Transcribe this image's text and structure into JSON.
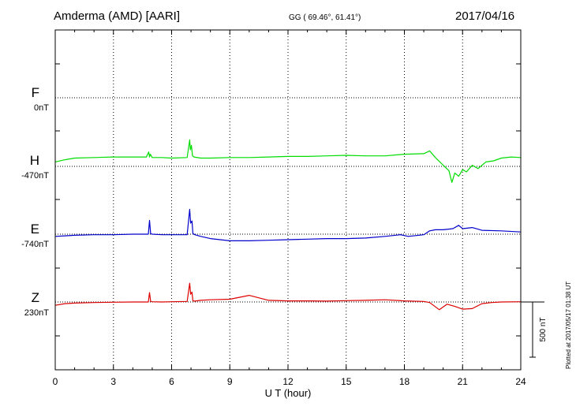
{
  "header": {
    "station": "Amderma (AMD)  [AARI]",
    "coords": "GG ( 69.46°,  61.41°)",
    "date": "2017/04/16"
  },
  "footer": "Plotted at 2017/05/17 01:38 UT",
  "components": [
    {
      "label": "F",
      "baseline": "0nT",
      "color": "#ffb000"
    },
    {
      "label": "H",
      "baseline": "-470nT",
      "color": "#00dd00"
    },
    {
      "label": "E",
      "baseline": "-740nT",
      "color": "#0000cc"
    },
    {
      "label": "Z",
      "baseline": "230nT",
      "color": "#dd0000"
    }
  ],
  "scale_bar": {
    "label": "500 nT",
    "value_nT": 500
  },
  "chart_data": {
    "type": "line",
    "title": "",
    "xlabel": "U T (hour)",
    "ylabel": "",
    "xlim": [
      0,
      24
    ],
    "xticks": [
      0,
      3,
      6,
      9,
      12,
      15,
      18,
      21,
      24
    ],
    "grid": true,
    "units": "nT",
    "series": [
      {
        "name": "F",
        "baseline_nT": 0,
        "x": [],
        "y": []
      },
      {
        "name": "H",
        "baseline_nT": -470,
        "x": [
          0,
          0.5,
          1,
          2,
          3,
          3.8,
          4.7,
          4.82,
          4.86,
          4.9,
          5.0,
          5.5,
          6.0,
          6.8,
          6.93,
          6.97,
          7.02,
          7.08,
          7.15,
          7.5,
          8,
          9,
          10,
          11,
          12,
          13,
          14,
          15,
          16,
          17,
          18,
          19,
          19.3,
          19.6,
          20,
          20.3,
          20.45,
          20.6,
          20.8,
          21,
          21.2,
          21.5,
          21.8,
          22.2,
          22.6,
          23,
          23.5,
          24
        ],
        "y": [
          -430,
          -410,
          -395,
          -390,
          -385,
          -385,
          -385,
          -340,
          -385,
          -360,
          -390,
          -390,
          -395,
          -390,
          -230,
          -320,
          -280,
          -375,
          -385,
          -395,
          -395,
          -390,
          -390,
          -385,
          -380,
          -380,
          -375,
          -370,
          -375,
          -375,
          -360,
          -355,
          -330,
          -390,
          -460,
          -510,
          -615,
          -530,
          -560,
          -500,
          -520,
          -460,
          -490,
          -430,
          -420,
          -395,
          -385,
          -390
        ]
      },
      {
        "name": "E",
        "baseline_nT": -740,
        "x": [
          0,
          0.5,
          1,
          2,
          3,
          4,
          4.8,
          4.86,
          4.92,
          5.0,
          5.5,
          6.0,
          6.8,
          6.93,
          6.98,
          7.05,
          7.1,
          7.2,
          7.5,
          8,
          9,
          10,
          11,
          12,
          13,
          14,
          15,
          16,
          17,
          17.8,
          18.2,
          19,
          19.3,
          19.6,
          20,
          20.5,
          20.8,
          21,
          21.5,
          22,
          23,
          24
        ],
        "y": [
          -760,
          -755,
          -750,
          -745,
          -745,
          -740,
          -740,
          -615,
          -735,
          -740,
          -745,
          -745,
          -745,
          -515,
          -640,
          -620,
          -735,
          -745,
          -760,
          -780,
          -800,
          -800,
          -795,
          -790,
          -785,
          -780,
          -780,
          -775,
          -760,
          -745,
          -760,
          -745,
          -710,
          -700,
          -700,
          -690,
          -660,
          -690,
          -680,
          -705,
          -710,
          -720
        ]
      },
      {
        "name": "Z",
        "baseline_nT": 230,
        "x": [
          0,
          0.5,
          1,
          2,
          3,
          4,
          4.8,
          4.86,
          4.92,
          5.0,
          5.5,
          6.0,
          6.8,
          6.93,
          6.98,
          7.05,
          7.1,
          7.2,
          7.5,
          8,
          9,
          10,
          11,
          12,
          13,
          14,
          15,
          16,
          17,
          18,
          19,
          19.3,
          19.8,
          20.2,
          20.6,
          21,
          21.5,
          22,
          22.5,
          23,
          24
        ],
        "y": [
          200,
          215,
          220,
          225,
          228,
          230,
          230,
          315,
          235,
          232,
          230,
          232,
          235,
          400,
          300,
          320,
          240,
          238,
          245,
          250,
          255,
          290,
          245,
          240,
          240,
          238,
          242,
          245,
          250,
          240,
          235,
          225,
          160,
          210,
          190,
          165,
          170,
          215,
          225,
          230,
          232
        ]
      }
    ]
  }
}
